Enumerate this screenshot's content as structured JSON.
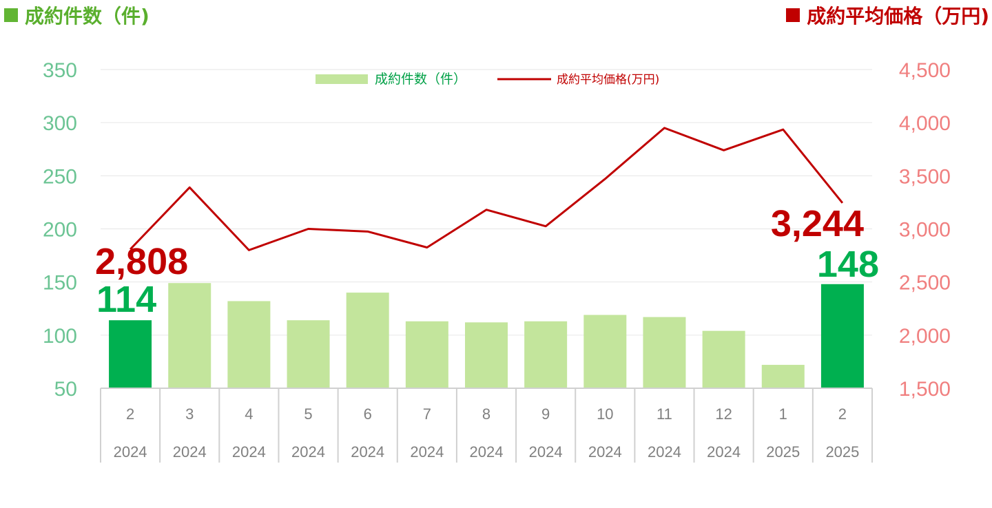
{
  "header": {
    "left_title": "成約件数（件)",
    "right_title": "成約平均価格（万円)"
  },
  "colors": {
    "bar": "#c3e59c",
    "bar_highlight": "#00b050",
    "line": "#c00000",
    "left_axis_text": "#6cc494",
    "right_axis_text": "#f07f7f",
    "grid": "#e6e6e6",
    "category_text": "#808080"
  },
  "chart_data": {
    "type": "bar",
    "categories": [
      [
        "2",
        "2024"
      ],
      [
        "3",
        "2024"
      ],
      [
        "4",
        "2024"
      ],
      [
        "5",
        "2024"
      ],
      [
        "6",
        "2024"
      ],
      [
        "7",
        "2024"
      ],
      [
        "8",
        "2024"
      ],
      [
        "9",
        "2024"
      ],
      [
        "10",
        "2024"
      ],
      [
        "11",
        "2024"
      ],
      [
        "12",
        "2024"
      ],
      [
        "1",
        "2025"
      ],
      [
        "2",
        "2025"
      ]
    ],
    "series": [
      {
        "name": "成約件数（件）",
        "type": "bar",
        "axis": "left",
        "values": [
          114,
          149,
          132,
          114,
          140,
          113,
          112,
          113,
          119,
          117,
          104,
          72,
          148
        ],
        "highlight": [
          0,
          12
        ]
      },
      {
        "name": "成約平均価格(万円)",
        "type": "line",
        "axis": "right",
        "values": [
          2808,
          3390,
          2800,
          3000,
          2975,
          2825,
          3180,
          3025,
          3470,
          3950,
          3740,
          3935,
          3244
        ]
      }
    ],
    "left_axis": {
      "min": 50,
      "max": 350,
      "ticks": [
        "350",
        "300",
        "250",
        "200",
        "150",
        "100",
        "50"
      ]
    },
    "right_axis": {
      "min": 1500,
      "max": 4500,
      "ticks": [
        "4,500",
        "4,000",
        "3,500",
        "3,000",
        "2,500",
        "2,000",
        "1,500"
      ]
    },
    "annotations": [
      {
        "text": "2,808",
        "series": "line",
        "index": 0
      },
      {
        "text": "114",
        "series": "bar",
        "index": 0
      },
      {
        "text": "3,244",
        "series": "line",
        "index": 12
      },
      {
        "text": "148",
        "series": "bar",
        "index": 12
      }
    ],
    "grid": true,
    "legend": "top-center"
  }
}
